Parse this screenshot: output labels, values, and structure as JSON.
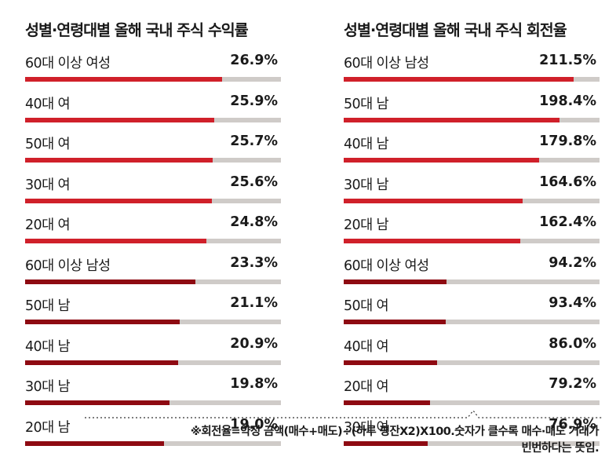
{
  "colors": {
    "bright_red": "#d0202a",
    "dark_red": "#8e0a12",
    "track": "#cfcbc8"
  },
  "chart_data": [
    {
      "type": "bar",
      "orientation": "horizontal",
      "title": "성별·연령대별 올해 국내 주식 수익률",
      "unit": "%",
      "xlim": [
        0,
        35
      ],
      "categories": [
        "60대 이상 여성",
        "40대 여",
        "50대 여",
        "30대 여",
        "20대 여",
        "60대 이상 남성",
        "50대 남",
        "40대 남",
        "30대 남",
        "20대 남"
      ],
      "values": [
        26.9,
        25.9,
        25.7,
        25.6,
        24.8,
        23.3,
        21.1,
        20.9,
        19.8,
        19.0
      ],
      "value_labels": [
        "26.9%",
        "25.9%",
        "25.7%",
        "25.6%",
        "24.8%",
        "23.3%",
        "21.1%",
        "20.9%",
        "19.8%",
        "19.0%"
      ],
      "bar_colors": [
        "#d0202a",
        "#d0202a",
        "#d0202a",
        "#d0202a",
        "#d0202a",
        "#8e0a12",
        "#8e0a12",
        "#8e0a12",
        "#8e0a12",
        "#8e0a12"
      ]
    },
    {
      "type": "bar",
      "orientation": "horizontal",
      "title": "성별·연령대별 올해 국내 주식 회전율",
      "unit": "%",
      "xlim": [
        0,
        235
      ],
      "categories": [
        "60대 이상 남성",
        "50대 남",
        "40대 남",
        "30대 남",
        "20대 남",
        "60대 이상 여성",
        "50대 여",
        "40대 여",
        "20대 여",
        "30대 여"
      ],
      "values": [
        211.5,
        198.4,
        179.8,
        164.6,
        162.4,
        94.2,
        93.4,
        86.0,
        79.2,
        76.9
      ],
      "value_labels": [
        "211.5%",
        "198.4%",
        "179.8%",
        "164.6%",
        "162.4%",
        "94.2%",
        "93.4%",
        "86.0%",
        "79.2%",
        "76.9%"
      ],
      "bar_colors": [
        "#d0202a",
        "#d0202a",
        "#d0202a",
        "#d0202a",
        "#d0202a",
        "#8e0a12",
        "#8e0a12",
        "#8e0a12",
        "#8e0a12",
        "#8e0a12"
      ]
    }
  ],
  "footnote": {
    "line1": "※회전율=약정 금액(매수+매도)÷(하루 평잔X2)X100.숫자가 클수록 매수·매도 거래가",
    "line2": "빈번하다는 뜻임."
  }
}
